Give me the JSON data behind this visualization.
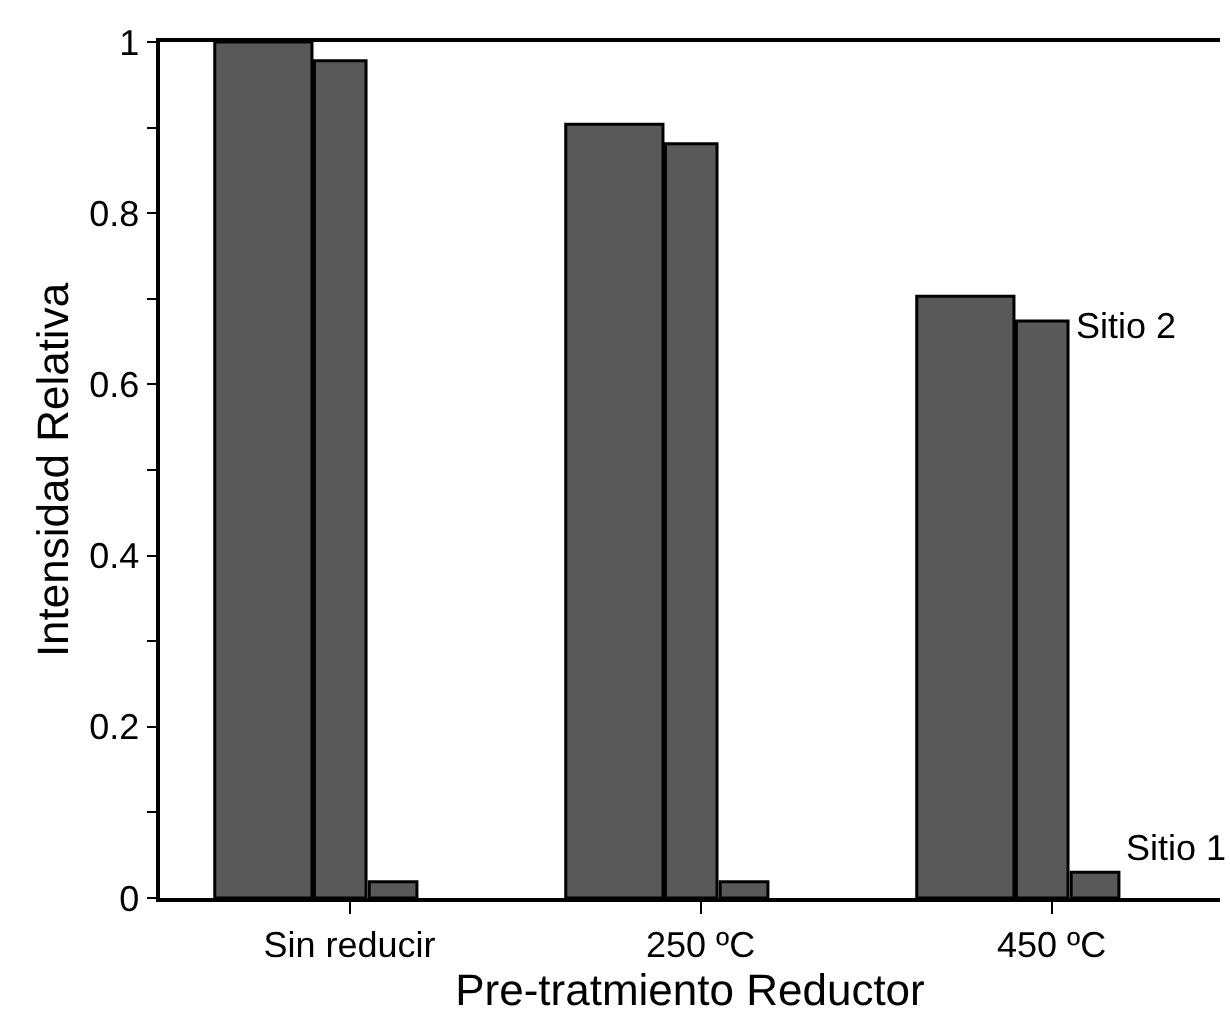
{
  "chart_data": {
    "type": "bar",
    "xlabel": "Pre-tratmiento Reductor",
    "ylabel": "Intensidad Relativa",
    "categories": [
      "Sin reducir",
      "250 ºC",
      "450 ºC"
    ],
    "series": [
      {
        "color": "#595959",
        "values": [
          1.0,
          0.904,
          0.703
        ]
      },
      {
        "name": "Sitio 2",
        "color": "#595959",
        "values": [
          0.978,
          0.881,
          0.674
        ]
      },
      {
        "name": "Sitio 1",
        "color": "#595959",
        "values": [
          0.019,
          0.019,
          0.03
        ]
      }
    ],
    "ylim": [
      0,
      1
    ],
    "yticks": [
      0,
      {
        "value": 0.1,
        "label": null
      },
      0.2,
      {
        "value": 0.3,
        "label": null
      },
      0.4,
      {
        "value": 0.5,
        "label": null
      },
      0.6,
      {
        "value": 0.7,
        "label": null
      },
      0.8,
      {
        "value": 0.9,
        "label": null
      },
      1
    ],
    "tick_labels": true
  }
}
